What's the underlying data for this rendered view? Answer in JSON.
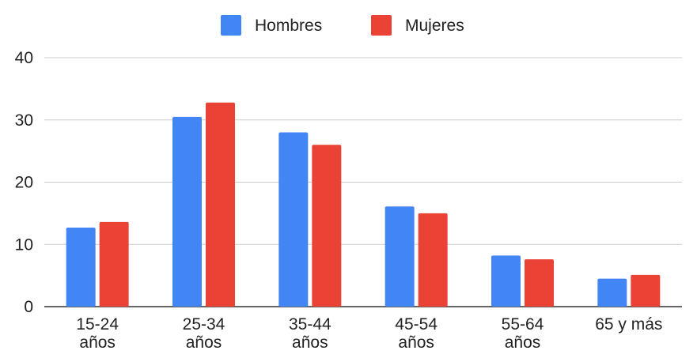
{
  "chart_data": {
    "type": "bar",
    "title": "",
    "xlabel": "",
    "ylabel": "",
    "ylim": [
      0,
      40
    ],
    "yticks": [
      0,
      10,
      20,
      30,
      40
    ],
    "grid": true,
    "legend_position": "top-center",
    "categories": [
      [
        "15-24",
        "años"
      ],
      [
        "25-34",
        "años"
      ],
      [
        "35-44",
        "años"
      ],
      [
        "45-54",
        "años"
      ],
      [
        "55-64",
        "años"
      ],
      [
        "65 y más"
      ]
    ],
    "series": [
      {
        "name": "Hombres",
        "color": "#4285F4",
        "values": [
          12.7,
          30.5,
          28.0,
          16.1,
          8.2,
          4.5
        ]
      },
      {
        "name": "Mujeres",
        "color": "#EA4335",
        "values": [
          13.6,
          32.8,
          26.0,
          15.0,
          7.6,
          5.1
        ]
      }
    ]
  }
}
